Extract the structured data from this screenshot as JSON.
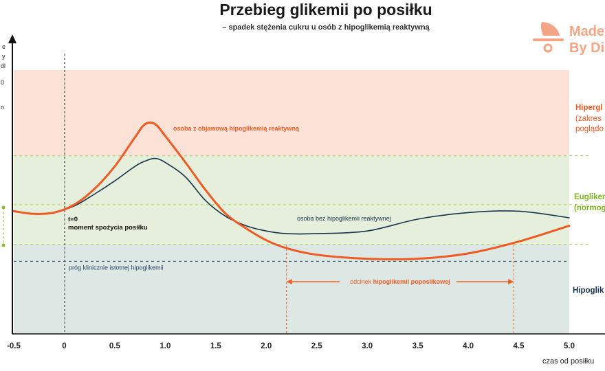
{
  "chart_data": {
    "type": "line",
    "title": "Przebieg glikemii po posiłku",
    "subtitle": "– spadek stężenia cukru u osób z hipoglikemią reaktywną",
    "xlabel": "czas od posiłku",
    "x_ticks": [
      "-0.5",
      "0",
      "0.5",
      "1.0",
      "1.5",
      "2.0",
      "2.5",
      "3.0",
      "3.5",
      "4.0",
      "4.5",
      "5.0"
    ],
    "xlim": [
      -0.5,
      5.0
    ],
    "ylim": [
      0,
      10
    ],
    "y_axis_fragments": [
      "e",
      "y",
      "dl",
      "0",
      "n"
    ],
    "grid": false,
    "zones": [
      {
        "name": "hyper",
        "from": 6.75,
        "to": 10,
        "color": "#fbe1d6",
        "label": "Hipergl",
        "sublabel_1": "(zakres",
        "sublabel_2": "poglądo"
      },
      {
        "name": "eu",
        "from": 3.4,
        "to": 6.75,
        "color": "#e5efdc",
        "label": "Eugliken",
        "sublabel_1": "(normog"
      },
      {
        "name": "hypo",
        "from": 0,
        "to": 3.4,
        "color": "#dde8e4",
        "label": "Hipoglik"
      }
    ],
    "thresholds": [
      {
        "y": 6.75,
        "style": "dashed",
        "color": "#a7cf50"
      },
      {
        "y": 4.9,
        "style": "dashed",
        "color": "#a7cf50"
      },
      {
        "y": 3.4,
        "style": "dashed",
        "color": "#a7cf50"
      },
      {
        "y": 2.75,
        "style": "dashed",
        "color": "#2b4664",
        "label": "próg klinicznie istotnej hipoglikemii"
      }
    ],
    "annotations": {
      "t0_line": "t=0",
      "t0_text": "moment spożycia posiłku",
      "span_prefix": "odcinek ",
      "span_bold": "hipoglikemii poposiłkowej",
      "span_x": [
        2.2,
        4.45
      ]
    },
    "series": [
      {
        "name": "osoba z objawową hipoglikemią reaktywną",
        "color": "#f05a22",
        "x": [
          -0.5,
          -0.3,
          -0.1,
          0.1,
          0.3,
          0.5,
          0.7,
          0.8,
          0.9,
          1.0,
          1.2,
          1.4,
          1.6,
          1.8,
          2.0,
          2.2,
          2.5,
          3.0,
          3.5,
          4.0,
          4.5,
          5.0
        ],
        "y": [
          4.65,
          4.55,
          4.6,
          4.9,
          5.5,
          6.35,
          7.45,
          7.95,
          7.95,
          7.5,
          6.5,
          5.45,
          4.55,
          4.0,
          3.55,
          3.25,
          3.0,
          2.85,
          2.85,
          3.05,
          3.5,
          4.1
        ]
      },
      {
        "name": "osoba bez hipoglikemii reaktywnej",
        "color": "#17324d",
        "x": [
          -0.5,
          -0.3,
          -0.1,
          0.1,
          0.3,
          0.5,
          0.7,
          0.8,
          0.9,
          1.0,
          1.2,
          1.4,
          1.6,
          1.8,
          2.0,
          2.2,
          2.5,
          3.0,
          3.5,
          4.0,
          4.5,
          5.0
        ],
        "y": [
          4.65,
          4.55,
          4.6,
          4.85,
          5.3,
          5.8,
          6.35,
          6.55,
          6.65,
          6.5,
          5.95,
          5.05,
          4.45,
          4.1,
          3.9,
          3.8,
          3.8,
          3.9,
          4.35,
          4.6,
          4.65,
          4.4
        ]
      }
    ]
  },
  "brand": {
    "line1": "Made",
    "line2": "By Die",
    "color": "#f4a585"
  }
}
